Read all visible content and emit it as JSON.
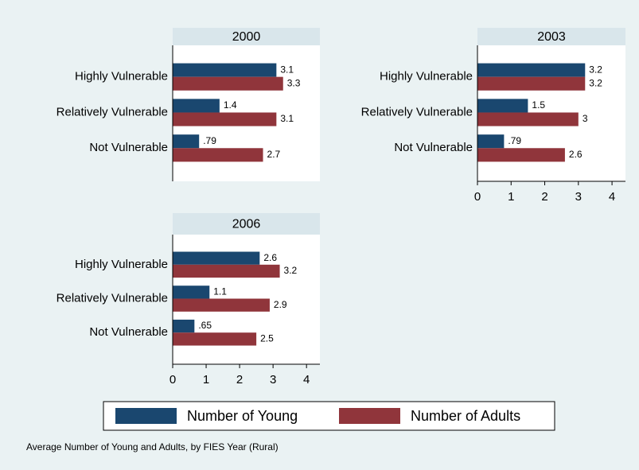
{
  "chart_data": [
    {
      "type": "barh",
      "title": "2000",
      "categories": [
        "Highly Vulnerable",
        "Relatively Vulnerable",
        "Not Vulnerable"
      ],
      "series": [
        {
          "name": "Number of Young",
          "color": "#1a476f",
          "values": [
            3.1,
            1.4,
            0.79
          ],
          "value_labels": [
            "3.1",
            "1.4",
            ".79"
          ]
        },
        {
          "name": "Number of Adults",
          "color": "#90353b",
          "values": [
            3.3,
            3.1,
            2.7
          ]
        }
      ],
      "xlim": [
        0,
        4.4
      ]
    },
    {
      "type": "barh",
      "title": "2003",
      "categories": [
        "Highly Vulnerable",
        "Relatively Vulnerable",
        "Not Vulnerable"
      ],
      "series": [
        {
          "name": "Number of Young",
          "color": "#1a476f",
          "values": [
            3.2,
            1.5,
            0.79
          ],
          "value_labels": [
            "3.2",
            "1.5",
            ".79"
          ]
        },
        {
          "name": "Number of Adults",
          "color": "#90353b",
          "values": [
            3.2,
            3,
            2.6
          ]
        }
      ],
      "xlim": [
        0,
        4.4
      ],
      "xticks": [
        0,
        1,
        2,
        3,
        4
      ]
    },
    {
      "type": "barh",
      "title": "2006",
      "categories": [
        "Highly Vulnerable",
        "Relatively Vulnerable",
        "Not Vulnerable"
      ],
      "series": [
        {
          "name": "Number of Young",
          "color": "#1a476f",
          "values": [
            2.6,
            1.1,
            0.65
          ],
          "value_labels": [
            "2.6",
            "1.1",
            ".65"
          ]
        },
        {
          "name": "Number of Adults",
          "color": "#90353b",
          "values": [
            3.2,
            2.9,
            2.5
          ]
        }
      ],
      "xlim": [
        0,
        4.4
      ],
      "xticks": [
        0,
        1,
        2,
        3,
        4
      ]
    }
  ],
  "note": "Average Number of Young and Adults, by FIES Year (Rural)"
}
